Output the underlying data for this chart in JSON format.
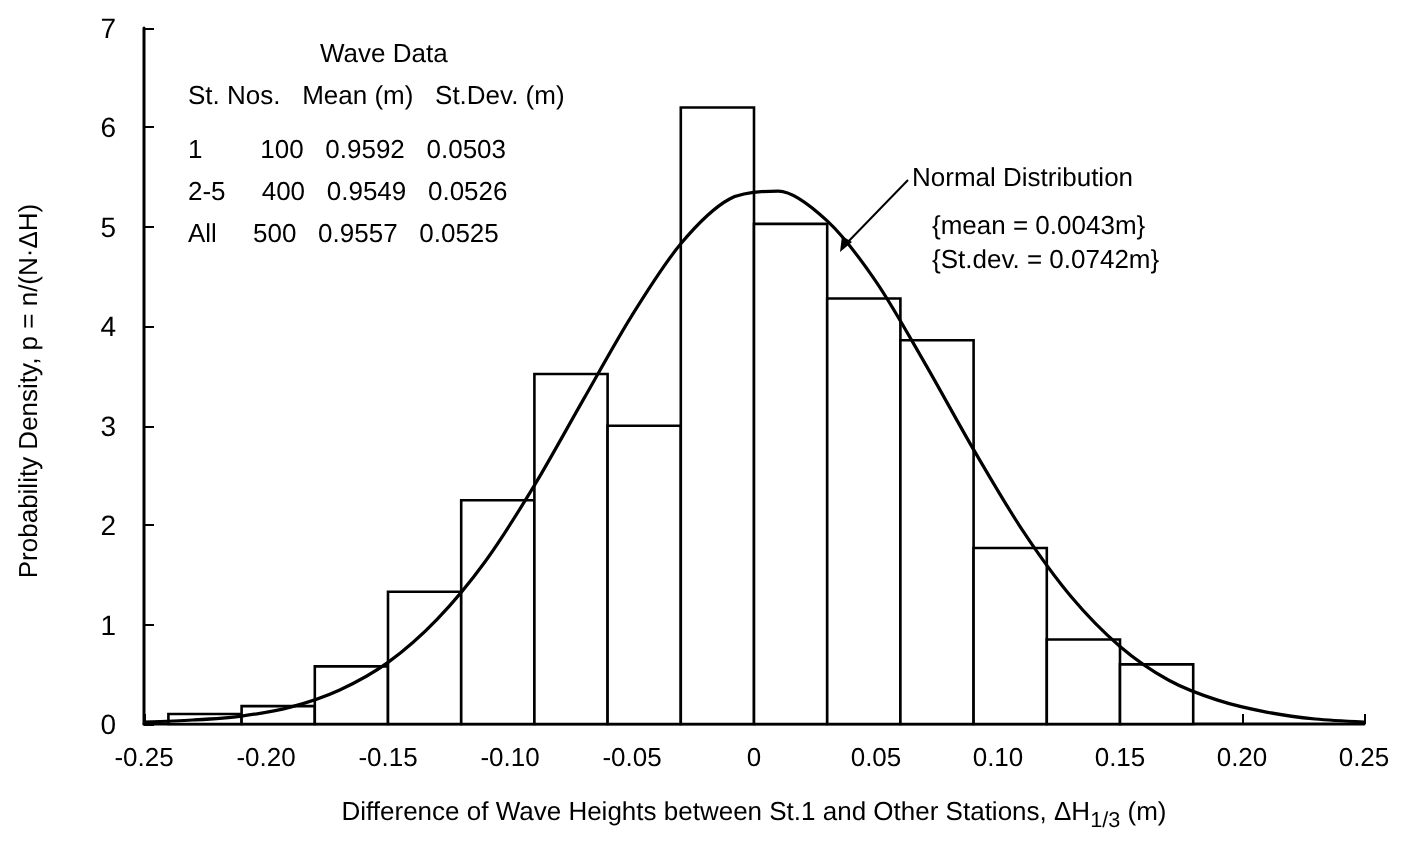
{
  "chart_data": {
    "type": "histogram",
    "xlabel": "Difference of Wave Heights between St.1 and Other Stations, ΔH$_{1/3}$ (m)",
    "ylabel": "Probability Density, p = n/(N·ΔH)",
    "bins": [
      -0.24,
      -0.21,
      -0.18,
      -0.15,
      -0.12,
      -0.09,
      -0.06,
      -0.03,
      0,
      0.03,
      0.06,
      0.09,
      0.12,
      0.15,
      0.18
    ],
    "values": [
      0.1,
      0.18,
      0.58,
      1.33,
      2.25,
      3.52,
      3.0,
      6.2,
      5.03,
      4.28,
      3.86,
      1.77,
      0.85,
      0.6
    ],
    "color": "#ffffff",
    "series": [
      {
        "type": "line",
        "color": "#000000",
        "x": [
          -0.25,
          -0.23,
          -0.21,
          -0.19,
          -0.17,
          -0.15,
          -0.13,
          -0.11,
          -0.09,
          -0.07,
          -0.05,
          -0.03,
          -0.01,
          0.01,
          0.03,
          0.05,
          0.07,
          0.09,
          0.11,
          0.13,
          0.15,
          0.17,
          0.19,
          0.21,
          0.23,
          0.25
        ],
        "values": [
          0.02,
          0.04,
          0.08,
          0.17,
          0.34,
          0.62,
          1.05,
          1.64,
          2.4,
          3.26,
          4.11,
          4.83,
          5.28,
          5.36,
          5.06,
          4.45,
          3.63,
          2.76,
          1.95,
          1.28,
          0.78,
          0.44,
          0.24,
          0.12,
          0.05,
          0.02
        ]
      }
    ],
    "marker": "none",
    "line_style": "solid",
    "grid": false,
    "xlim": [
      -0.25,
      0.25
    ],
    "xticks": [
      {
        "value": -0.25,
        "label": "-0.25"
      },
      {
        "value": -0.2,
        "label": "-0.20"
      },
      {
        "value": -0.15,
        "label": "-0.15"
      },
      {
        "value": -0.1,
        "label": "-0.10"
      },
      {
        "value": -0.05,
        "label": "-0.05"
      },
      0,
      {
        "value": 0.05,
        "label": "0.05"
      },
      {
        "value": 0.1,
        "label": "0.10"
      },
      {
        "value": 0.15,
        "label": "0.15"
      },
      {
        "value": 0.2,
        "label": "0.20"
      },
      {
        "value": 0.25,
        "label": "0.25"
      }
    ],
    "ylim": [
      0,
      7
    ],
    "yticks": [
      0,
      1,
      2,
      3,
      4,
      5,
      6,
      7
    ],
    "annotations": [
      "Wave Data",
      "St. Nos.   Mean (m)   St.Dev. (m)",
      "1        100   0.9592   0.0503",
      "2-5     400   0.9549   0.0526",
      "All     500   0.9557   0.0525",
      "Normal Distribution",
      "{mean = 0.0043m}",
      "{St.dev. = 0.0742m}"
    ]
  }
}
